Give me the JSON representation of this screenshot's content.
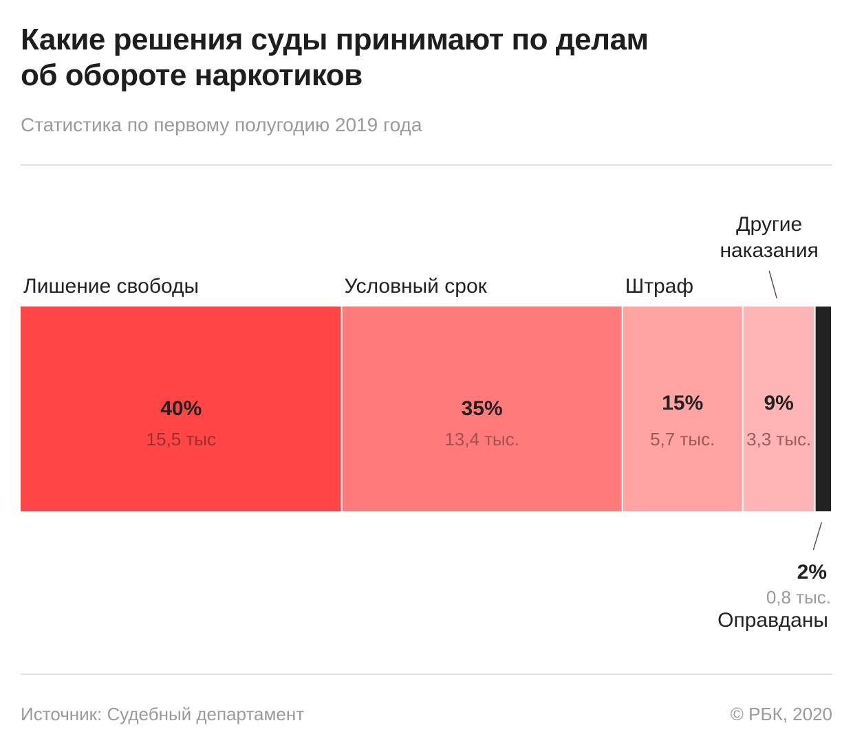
{
  "header": {
    "title_line1": "Какие решения суды принимают по делам",
    "title_line2": "об обороте наркотиков",
    "subtitle": "Статистика по первому полугодию 2019 года"
  },
  "footer": {
    "source": "Источник: Судебный департамент",
    "copyright": "© РБК, 2020"
  },
  "chart_data": {
    "type": "bar",
    "orientation": "horizontal-stacked-100",
    "title": "Какие решения суды принимают по делам об обороте наркотиков",
    "subtitle": "Статистика по первому полугодию 2019 года",
    "unit": "%",
    "categories": [
      "Лишение свободы",
      "Условный срок",
      "Штраф",
      "Другие наказания",
      "Оправданы"
    ],
    "values": [
      40,
      35,
      15,
      9,
      2
    ],
    "value_labels": [
      "40%",
      "35%",
      "15%",
      "9%",
      "2%"
    ],
    "count_labels": [
      "15,5 тыс",
      "13,4 тыс.",
      "5,7 тыс.",
      "3,3 тыс.",
      "0,8 тыс."
    ],
    "counts_thousands": [
      15.5,
      13.4,
      5.7,
      3.3,
      0.8
    ],
    "colors": [
      "#ff4646",
      "#ff7b7b",
      "#ffa3a3",
      "#ffb5b5",
      "#222222"
    ],
    "grid": false,
    "legend": "none",
    "label_placement": [
      "above",
      "above",
      "above",
      "above-callout",
      "below-callout"
    ]
  },
  "colors": {
    "title": "#1e1e1e",
    "muted": "#9a9a9a",
    "rule": "#e2e2e2",
    "segment_divider": "#ffffff"
  }
}
